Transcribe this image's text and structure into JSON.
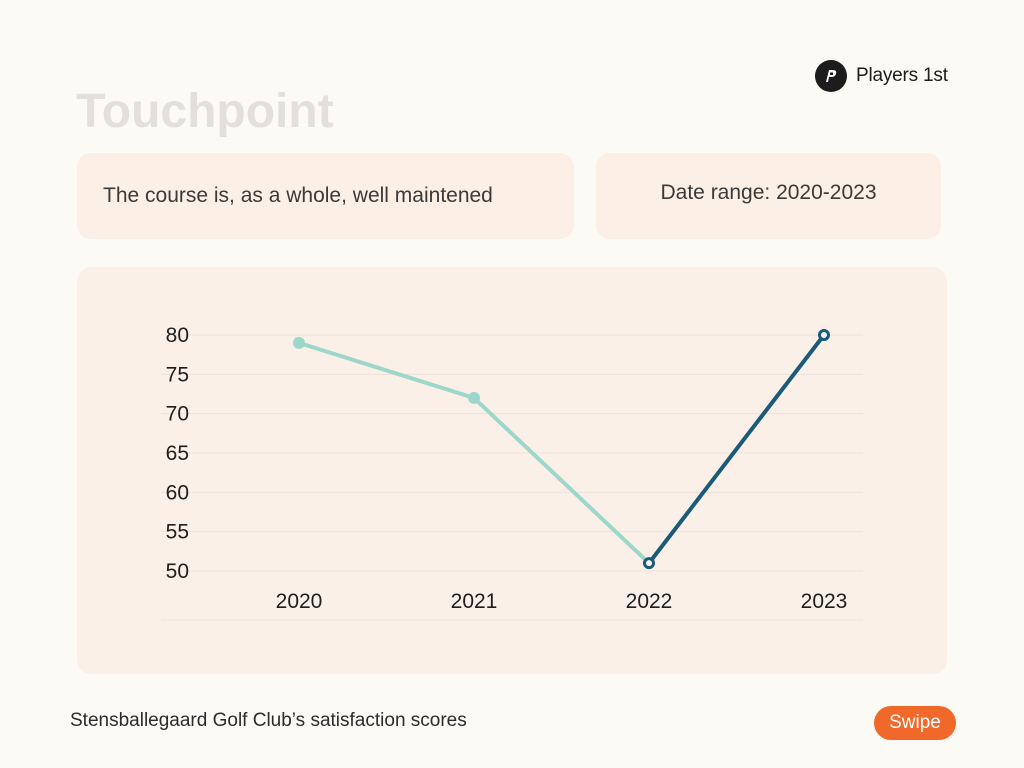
{
  "brand": {
    "name": "Players 1st",
    "logo_icon": "players-1st-logo-icon"
  },
  "title": "Touchpoint",
  "question_card": {
    "text": "The course is, as a whole, well maintened"
  },
  "date_card": {
    "text": "Date range: 2020-2023"
  },
  "chart_data": {
    "type": "line",
    "title": "",
    "xlabel": "",
    "ylabel": "",
    "categories": [
      "2020",
      "2021",
      "2022",
      "2023"
    ],
    "series": [
      {
        "values": [
          79,
          72,
          51,
          80
        ],
        "colors": [
          "#9dd6cb",
          "#9dd6cb",
          "#1b5a78",
          "#1b5a78"
        ]
      }
    ],
    "ylim": [
      50,
      80
    ],
    "yticks": [
      80,
      75,
      70,
      65,
      60,
      55,
      50
    ],
    "grid": true,
    "legend": "none",
    "colors": {
      "light": "#9dd6cb",
      "dark": "#1b5a78",
      "grid": "#ece3db"
    }
  },
  "caption": "Stensballegaard Golf Club’s satisfaction scores",
  "swipe_button": {
    "label": "Swipe",
    "color": "#f0692b"
  }
}
